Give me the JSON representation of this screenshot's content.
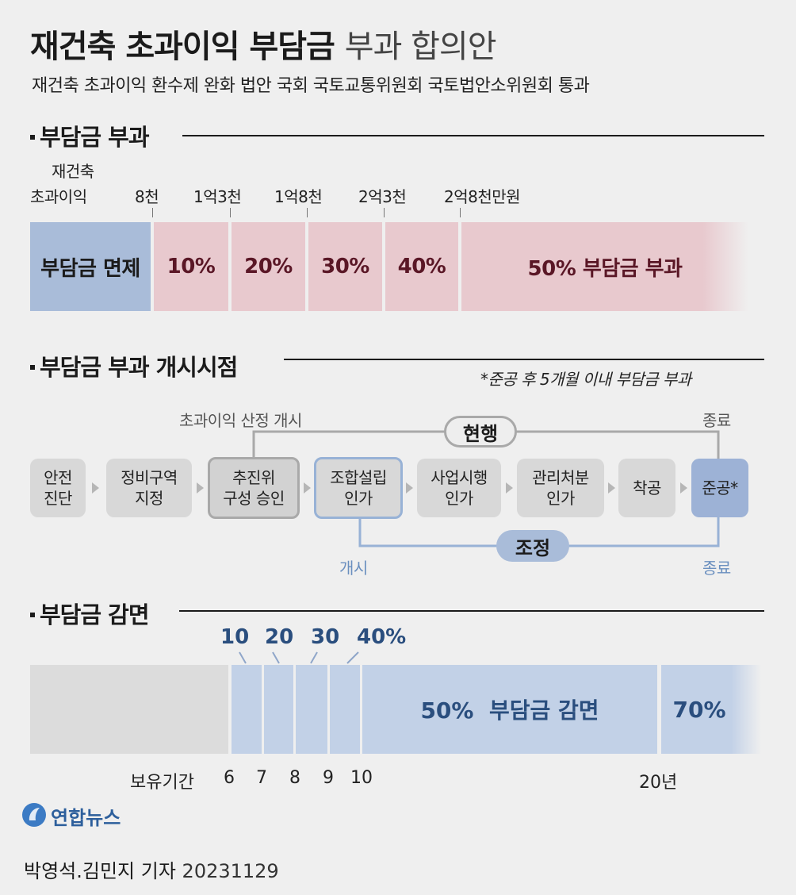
{
  "header": {
    "title_bold": "재건축 초과이익 부담금",
    "title_thin": "부과 합의안",
    "subtitle": "재건축 초과이익 환수제 완화 법안 국회 국토교통위원회 국토법안소위원회 통과"
  },
  "section1": {
    "heading": "부담금 부과",
    "axis_label_line1": "재건축",
    "axis_label_line2": "초과이익",
    "thresholds": [
      "8천",
      "1억3천",
      "1억8천",
      "2억3천",
      "2억8천만원"
    ],
    "exempt_label": "부담금 면제",
    "rates": [
      "10%",
      "20%",
      "30%",
      "40%",
      "50% 부담금 부과"
    ],
    "colors": {
      "exempt": "#a9bcd9",
      "levy": "#e8c9ce",
      "levy_text": "#5a1726"
    }
  },
  "section2": {
    "heading": "부담금 부과 개시시점",
    "note": "*준공 후 5개월 이내 부담금 부과",
    "current_start_label": "초과이익 산정 개시",
    "current_end_label": "종료",
    "current_pill": "현행",
    "adjusted_pill": "조정",
    "adjusted_start_label": "개시",
    "adjusted_end_label": "종료",
    "steps": [
      {
        "line1": "안전",
        "line2": "진단"
      },
      {
        "line1": "정비구역",
        "line2": "지정"
      },
      {
        "line1": "추진위",
        "line2": "구성 승인"
      },
      {
        "line1": "조합설립",
        "line2": "인가"
      },
      {
        "line1": "사업시행",
        "line2": "인가"
      },
      {
        "line1": "관리처분",
        "line2": "인가"
      },
      {
        "line1": "착공",
        "line2": ""
      },
      {
        "line1": "준공*",
        "line2": ""
      }
    ],
    "colors": {
      "current": "#a9a9a9",
      "adjusted": "#98b2d6"
    }
  },
  "section3": {
    "heading": "부담금 감면",
    "top_labels": [
      "10",
      "20",
      "30",
      "40%"
    ],
    "middle_label": "50%  부담금 감면",
    "end_label": "70%",
    "axis_start": "보유기간",
    "axis_ticks": [
      "6",
      "7",
      "8",
      "9",
      "10",
      "20년"
    ],
    "colors": {
      "none": "#dcdcdc",
      "reduction": "#c2d1e7",
      "text": "#2a4e7e"
    }
  },
  "footer": {
    "logo_text": "연합뉴스",
    "credit": "박영석.김민지 기자",
    "date": "20231129"
  }
}
